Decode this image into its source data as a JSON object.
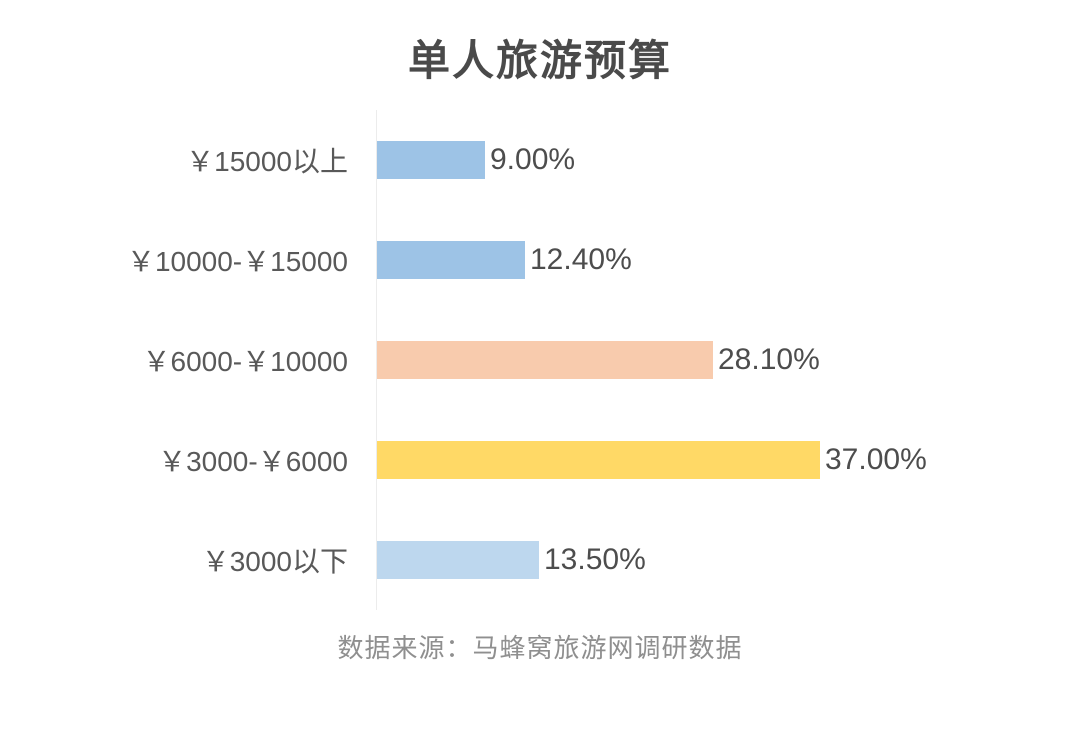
{
  "title": "单人旅游预算",
  "footer": "数据来源：马蜂窝旅游网调研数据",
  "colors": {
    "title_text": "#4a4a4a",
    "category_text": "#595959",
    "value_text": "#4d4d4d",
    "footer_text": "#8f8f8f",
    "axis_line": "#ececec",
    "background": "#ffffff"
  },
  "chart_data": {
    "type": "bar",
    "orientation": "horizontal",
    "title": "单人旅游预算",
    "xlabel": "",
    "ylabel": "",
    "categories": [
      "￥15000以上",
      "￥10000-￥15000",
      "￥6000-￥10000",
      "￥3000-￥6000",
      "￥3000以下"
    ],
    "values": [
      9.0,
      12.4,
      28.1,
      37.0,
      13.5
    ],
    "value_labels": [
      "9.00%",
      "12.40%",
      "28.10%",
      "37.00%",
      "13.50%"
    ],
    "bar_colors": [
      "#9DC3E6",
      "#9DC3E6",
      "#F8CBAD",
      "#FFD966",
      "#BDD7EE"
    ],
    "xlim": [
      0,
      40
    ],
    "grid": false,
    "legend": "none",
    "data_labels": "outside-end",
    "source_caption": "数据来源：马蜂窝旅游网调研数据"
  }
}
